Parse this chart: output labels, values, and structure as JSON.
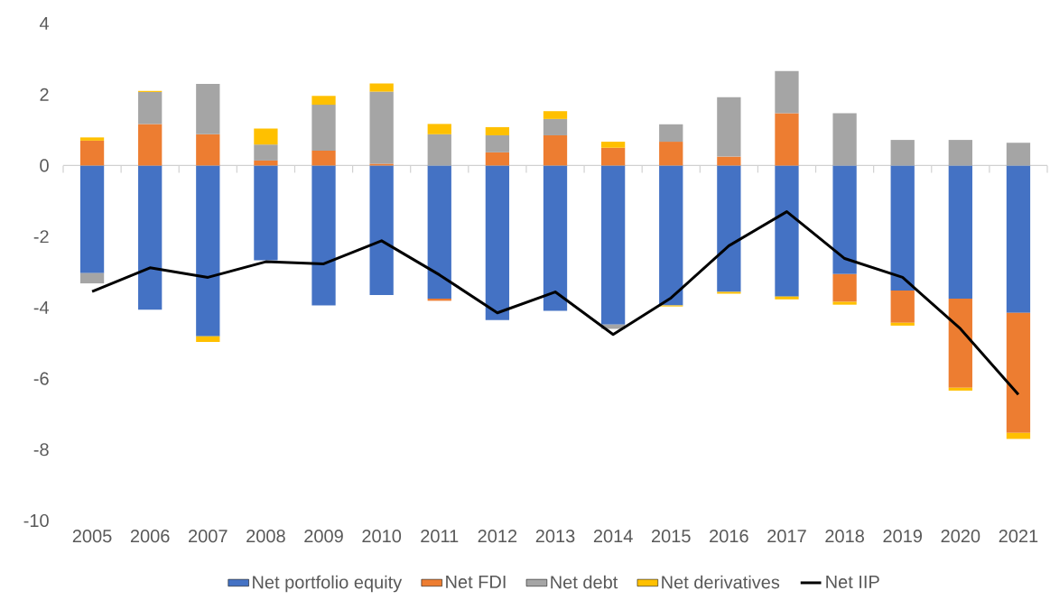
{
  "chart_data": {
    "type": "bar",
    "stacked": true,
    "categories": [
      "2005",
      "2006",
      "2007",
      "2008",
      "2009",
      "2010",
      "2011",
      "2012",
      "2013",
      "2014",
      "2015",
      "2016",
      "2017",
      "2018",
      "2019",
      "2020",
      "2021"
    ],
    "ylim": [
      -10,
      4
    ],
    "yticks": [
      -10,
      -8,
      -6,
      -4,
      -2,
      0,
      2,
      4
    ],
    "legend": "bottom",
    "marker": "none",
    "series": [
      {
        "name": "Net portfolio equity",
        "color": "#4472c4",
        "values": [
          -3.03,
          -4.06,
          -4.81,
          -2.67,
          -3.94,
          -3.65,
          -3.75,
          -4.35,
          -4.09,
          -4.48,
          -3.94,
          -3.56,
          -3.69,
          -3.06,
          -3.52,
          -3.75,
          -4.15
        ]
      },
      {
        "name": "Net FDI",
        "color": "#ed7d31",
        "values": [
          0.7,
          1.17,
          0.88,
          0.14,
          0.42,
          0.05,
          -0.06,
          0.37,
          0.85,
          0.5,
          0.67,
          0.25,
          1.47,
          -0.78,
          -0.91,
          -2.51,
          -3.38
        ]
      },
      {
        "name": "Net debt",
        "color": "#a5a5a5",
        "values": [
          -0.29,
          0.9,
          1.42,
          0.45,
          1.29,
          2.03,
          0.88,
          0.48,
          0.46,
          -0.12,
          0.49,
          1.67,
          1.19,
          1.47,
          0.72,
          0.72,
          0.64
        ]
      },
      {
        "name": "Net derivatives",
        "color": "#ffc000",
        "values": [
          0.09,
          0.03,
          -0.16,
          0.45,
          0.25,
          0.23,
          0.29,
          0.23,
          0.22,
          0.17,
          -0.03,
          -0.05,
          -0.08,
          -0.08,
          -0.08,
          -0.08,
          -0.17
        ]
      },
      {
        "name": "Net IIP",
        "type": "line",
        "color": "#000000",
        "values": [
          -3.55,
          -2.88,
          -3.15,
          -2.71,
          -2.77,
          -2.12,
          -3.08,
          -4.15,
          -3.56,
          -4.76,
          -3.73,
          -2.26,
          -1.3,
          -2.62,
          -3.15,
          -4.6,
          -6.45
        ]
      }
    ]
  }
}
